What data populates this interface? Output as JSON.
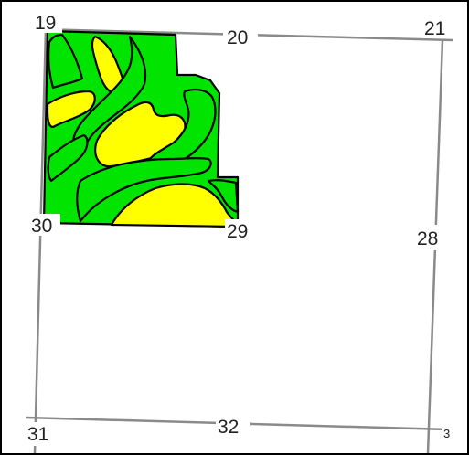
{
  "map": {
    "section_labels": {
      "s19": "19",
      "s20": "20",
      "s21": "21",
      "s28": "28",
      "s29": "29",
      "s30": "30",
      "s31": "31",
      "s32": "32",
      "s33": "3"
    },
    "colors": {
      "soil_green": "#00e400",
      "soil_yellow": "#ffff00",
      "outline": "#000000",
      "section_line": "#8a8a8a",
      "background": "#ffffff"
    }
  }
}
